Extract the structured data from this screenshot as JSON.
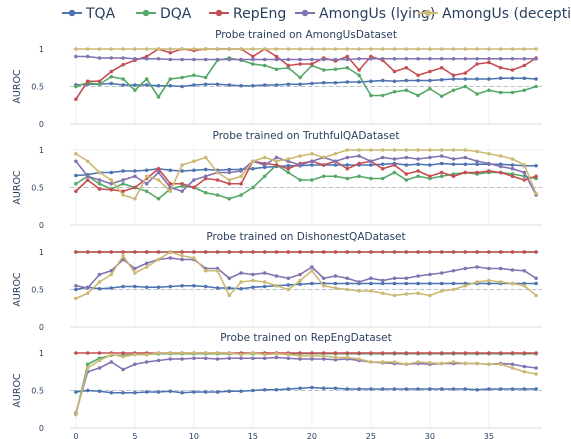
{
  "legend": [
    {
      "name": "TQA",
      "color": "#4c72b0"
    },
    {
      "name": "DQA",
      "color": "#55a868"
    },
    {
      "name": "RepEng",
      "color": "#c44e52"
    },
    {
      "name": "AmongUs (lying)",
      "color": "#8172b2"
    },
    {
      "name": "AmongUs (deception)",
      "color": "#ccb974"
    }
  ],
  "chart_data": [
    {
      "type": "line",
      "title": "Probe trained on AmongUsDataset",
      "ylabel": "AUROC",
      "xlabel": "",
      "x": [
        0,
        1,
        2,
        3,
        4,
        5,
        6,
        7,
        8,
        9,
        10,
        11,
        12,
        13,
        14,
        15,
        16,
        17,
        18,
        19,
        20,
        21,
        22,
        23,
        24,
        25,
        26,
        27,
        28,
        29,
        30,
        31,
        32,
        33,
        34,
        35,
        36,
        37,
        38,
        39
      ],
      "ylim": [
        0,
        1
      ],
      "yticks": [
        "0",
        "0.5",
        "1"
      ],
      "series": [
        {
          "name": "TQA",
          "values": [
            0.52,
            0.53,
            0.53,
            0.54,
            0.52,
            0.52,
            0.52,
            0.51,
            0.51,
            0.5,
            0.52,
            0.53,
            0.53,
            0.52,
            0.51,
            0.51,
            0.52,
            0.52,
            0.53,
            0.53,
            0.54,
            0.55,
            0.55,
            0.56,
            0.56,
            0.57,
            0.58,
            0.57,
            0.58,
            0.58,
            0.58,
            0.59,
            0.6,
            0.6,
            0.6,
            0.6,
            0.61,
            0.61,
            0.61,
            0.6
          ]
        },
        {
          "name": "DQA",
          "values": [
            0.5,
            0.55,
            0.53,
            0.63,
            0.6,
            0.45,
            0.6,
            0.36,
            0.6,
            0.62,
            0.65,
            0.62,
            0.85,
            0.88,
            0.85,
            0.8,
            0.78,
            0.73,
            0.75,
            0.62,
            0.78,
            0.72,
            0.73,
            0.75,
            0.65,
            0.38,
            0.38,
            0.43,
            0.45,
            0.38,
            0.47,
            0.37,
            0.45,
            0.5,
            0.4,
            0.45,
            0.42,
            0.42,
            0.45,
            0.5
          ]
        },
        {
          "name": "RepEng",
          "values": [
            0.33,
            0.57,
            0.57,
            0.7,
            0.79,
            0.85,
            0.9,
            1.0,
            0.95,
            1.0,
            0.98,
            1.0,
            1.0,
            1.0,
            1.0,
            0.9,
            1.0,
            0.9,
            0.78,
            0.8,
            0.8,
            0.88,
            0.84,
            0.9,
            0.72,
            0.9,
            0.85,
            0.7,
            0.75,
            0.65,
            0.7,
            0.75,
            0.65,
            0.68,
            0.8,
            0.82,
            0.75,
            0.72,
            0.78,
            0.88
          ]
        },
        {
          "name": "AmongUs (lying)",
          "values": [
            0.9,
            0.9,
            0.88,
            0.88,
            0.88,
            0.87,
            0.87,
            0.87,
            0.86,
            0.86,
            0.86,
            0.86,
            0.86,
            0.86,
            0.86,
            0.86,
            0.86,
            0.86,
            0.86,
            0.86,
            0.86,
            0.86,
            0.86,
            0.86,
            0.87,
            0.87,
            0.87,
            0.87,
            0.87,
            0.87,
            0.87,
            0.87,
            0.87,
            0.87,
            0.87,
            0.87,
            0.87,
            0.87,
            0.87,
            0.87
          ]
        },
        {
          "name": "AmongUs (deception)",
          "values": [
            1.0,
            1.0,
            1.0,
            1.0,
            1.0,
            1.0,
            1.0,
            1.0,
            1.0,
            1.0,
            1.0,
            1.0,
            1.0,
            1.0,
            1.0,
            1.0,
            1.0,
            1.0,
            1.0,
            1.0,
            1.0,
            1.0,
            1.0,
            1.0,
            1.0,
            1.0,
            1.0,
            1.0,
            1.0,
            1.0,
            1.0,
            1.0,
            1.0,
            1.0,
            1.0,
            1.0,
            1.0,
            1.0,
            1.0,
            1.0
          ]
        }
      ]
    },
    {
      "type": "line",
      "title": "Probe trained on TruthfulQADataset",
      "ylabel": "AUROC",
      "xlabel": "",
      "x": [
        0,
        1,
        2,
        3,
        4,
        5,
        6,
        7,
        8,
        9,
        10,
        11,
        12,
        13,
        14,
        15,
        16,
        17,
        18,
        19,
        20,
        21,
        22,
        23,
        24,
        25,
        26,
        27,
        28,
        29,
        30,
        31,
        32,
        33,
        34,
        35,
        36,
        37,
        38,
        39
      ],
      "ylim": [
        0,
        1
      ],
      "yticks": [
        "0",
        "0.5",
        "1"
      ],
      "series": [
        {
          "name": "TQA",
          "values": [
            0.66,
            0.67,
            0.7,
            0.7,
            0.72,
            0.72,
            0.73,
            0.75,
            0.73,
            0.72,
            0.73,
            0.74,
            0.73,
            0.74,
            0.74,
            0.75,
            0.77,
            0.78,
            0.79,
            0.79,
            0.8,
            0.8,
            0.8,
            0.8,
            0.8,
            0.8,
            0.81,
            0.82,
            0.8,
            0.81,
            0.8,
            0.82,
            0.81,
            0.81,
            0.81,
            0.81,
            0.81,
            0.8,
            0.79,
            0.79
          ]
        },
        {
          "name": "DQA",
          "values": [
            0.55,
            0.65,
            0.55,
            0.48,
            0.55,
            0.5,
            0.45,
            0.35,
            0.48,
            0.52,
            0.5,
            0.43,
            0.4,
            0.35,
            0.4,
            0.5,
            0.65,
            0.8,
            0.7,
            0.6,
            0.6,
            0.65,
            0.65,
            0.62,
            0.65,
            0.62,
            0.62,
            0.7,
            0.6,
            0.65,
            0.62,
            0.65,
            0.68,
            0.7,
            0.68,
            0.7,
            0.7,
            0.68,
            0.65,
            0.62
          ]
        },
        {
          "name": "RepEng",
          "values": [
            0.45,
            0.6,
            0.48,
            0.47,
            0.45,
            0.5,
            0.62,
            0.75,
            0.55,
            0.55,
            0.5,
            0.62,
            0.6,
            0.55,
            0.55,
            0.85,
            0.82,
            0.8,
            0.75,
            0.82,
            0.85,
            0.8,
            0.85,
            0.75,
            0.82,
            0.85,
            0.75,
            0.8,
            0.68,
            0.72,
            0.65,
            0.7,
            0.65,
            0.7,
            0.7,
            0.72,
            0.7,
            0.65,
            0.6,
            0.65
          ]
        },
        {
          "name": "AmongUs (lying)",
          "values": [
            0.85,
            0.65,
            0.6,
            0.55,
            0.6,
            0.65,
            0.55,
            0.7,
            0.5,
            0.45,
            0.6,
            0.65,
            0.7,
            0.7,
            0.72,
            0.85,
            0.8,
            0.9,
            0.85,
            0.8,
            0.85,
            0.9,
            0.85,
            0.9,
            0.92,
            0.85,
            0.9,
            0.88,
            0.9,
            0.88,
            0.9,
            0.92,
            0.88,
            0.9,
            0.85,
            0.82,
            0.78,
            0.75,
            0.7,
            0.4
          ]
        },
        {
          "name": "AmongUs (deception)",
          "values": [
            0.95,
            0.85,
            0.7,
            0.6,
            0.4,
            0.35,
            0.65,
            0.6,
            0.45,
            0.8,
            0.85,
            0.9,
            0.7,
            0.6,
            0.65,
            0.85,
            0.9,
            0.85,
            0.88,
            0.92,
            0.95,
            0.9,
            0.95,
            1.0,
            1.0,
            1.0,
            1.0,
            1.0,
            1.0,
            1.0,
            1.0,
            1.0,
            1.0,
            1.0,
            0.98,
            0.95,
            0.92,
            0.88,
            0.8,
            0.42
          ]
        }
      ]
    },
    {
      "type": "line",
      "title": "Probe trained on DishonestQADataset",
      "ylabel": "AUROC",
      "xlabel": "",
      "x": [
        0,
        1,
        2,
        3,
        4,
        5,
        6,
        7,
        8,
        9,
        10,
        11,
        12,
        13,
        14,
        15,
        16,
        17,
        18,
        19,
        20,
        21,
        22,
        23,
        24,
        25,
        26,
        27,
        28,
        29,
        30,
        31,
        32,
        33,
        34,
        35,
        36,
        37,
        38,
        39
      ],
      "ylim": [
        0,
        1
      ],
      "yticks": [
        "0",
        "0.5",
        "1"
      ],
      "series": [
        {
          "name": "TQA",
          "values": [
            0.5,
            0.53,
            0.51,
            0.52,
            0.54,
            0.54,
            0.53,
            0.53,
            0.54,
            0.55,
            0.55,
            0.54,
            0.52,
            0.52,
            0.51,
            0.53,
            0.54,
            0.55,
            0.56,
            0.57,
            0.58,
            0.58,
            0.58,
            0.58,
            0.58,
            0.58,
            0.58,
            0.58,
            0.58,
            0.58,
            0.58,
            0.58,
            0.58,
            0.58,
            0.58,
            0.58,
            0.58,
            0.58,
            0.58,
            0.58
          ]
        },
        {
          "name": "DQA",
          "values": [
            1.0,
            1.0,
            1.0,
            1.0,
            1.0,
            1.0,
            1.0,
            1.0,
            1.0,
            1.0,
            1.0,
            1.0,
            1.0,
            1.0,
            1.0,
            1.0,
            1.0,
            1.0,
            1.0,
            1.0,
            1.0,
            1.0,
            1.0,
            1.0,
            1.0,
            1.0,
            1.0,
            1.0,
            1.0,
            1.0,
            1.0,
            1.0,
            1.0,
            1.0,
            1.0,
            1.0,
            1.0,
            1.0,
            1.0,
            1.0
          ]
        },
        {
          "name": "RepEng",
          "values": [
            1.0,
            1.0,
            1.0,
            1.0,
            1.0,
            1.0,
            1.0,
            1.0,
            1.0,
            1.0,
            1.0,
            1.0,
            1.0,
            1.0,
            1.0,
            1.0,
            1.0,
            1.0,
            1.0,
            1.0,
            1.0,
            1.0,
            1.0,
            1.0,
            1.0,
            1.0,
            1.0,
            1.0,
            1.0,
            1.0,
            1.0,
            1.0,
            1.0,
            1.0,
            1.0,
            1.0,
            1.0,
            1.0,
            1.0,
            1.0
          ]
        },
        {
          "name": "AmongUs (lying)",
          "values": [
            0.55,
            0.52,
            0.7,
            0.75,
            0.9,
            0.78,
            0.85,
            0.9,
            0.92,
            0.9,
            0.9,
            0.78,
            0.78,
            0.65,
            0.72,
            0.7,
            0.72,
            0.68,
            0.65,
            0.7,
            0.8,
            0.65,
            0.68,
            0.65,
            0.6,
            0.65,
            0.62,
            0.65,
            0.65,
            0.68,
            0.7,
            0.72,
            0.75,
            0.78,
            0.8,
            0.78,
            0.78,
            0.76,
            0.75,
            0.65
          ]
        },
        {
          "name": "AmongUs (deception)",
          "values": [
            0.38,
            0.45,
            0.6,
            0.7,
            0.95,
            0.72,
            0.8,
            0.9,
            1.0,
            0.95,
            0.92,
            0.75,
            0.75,
            0.42,
            0.6,
            0.62,
            0.6,
            0.55,
            0.5,
            0.62,
            0.75,
            0.55,
            0.52,
            0.5,
            0.48,
            0.48,
            0.45,
            0.42,
            0.44,
            0.45,
            0.42,
            0.48,
            0.5,
            0.55,
            0.6,
            0.62,
            0.6,
            0.58,
            0.55,
            0.42
          ]
        }
      ]
    },
    {
      "type": "line",
      "title": "Probe trained on RepEngDataset",
      "ylabel": "AUROC",
      "xlabel": "",
      "x": [
        0,
        1,
        2,
        3,
        4,
        5,
        6,
        7,
        8,
        9,
        10,
        11,
        12,
        13,
        14,
        15,
        16,
        17,
        18,
        19,
        20,
        21,
        22,
        23,
        24,
        25,
        26,
        27,
        28,
        29,
        30,
        31,
        32,
        33,
        34,
        35,
        36,
        37,
        38,
        39
      ],
      "ylim": [
        0,
        1
      ],
      "xticks": [
        "0",
        "5",
        "10",
        "15",
        "20",
        "25",
        "30",
        "35"
      ],
      "yticks": [
        "0",
        "0.5",
        "1"
      ],
      "series": [
        {
          "name": "TQA",
          "values": [
            0.48,
            0.5,
            0.49,
            0.47,
            0.47,
            0.47,
            0.48,
            0.48,
            0.49,
            0.47,
            0.48,
            0.48,
            0.48,
            0.49,
            0.49,
            0.5,
            0.51,
            0.51,
            0.52,
            0.53,
            0.54,
            0.53,
            0.53,
            0.52,
            0.52,
            0.52,
            0.52,
            0.52,
            0.52,
            0.52,
            0.52,
            0.52,
            0.52,
            0.52,
            0.51,
            0.52,
            0.52,
            0.52,
            0.52,
            0.52
          ]
        },
        {
          "name": "DQA",
          "values": [
            0.18,
            0.85,
            0.93,
            0.97,
            0.97,
            0.98,
            0.98,
            0.99,
            0.99,
            0.99,
            0.99,
            0.99,
            0.99,
            0.99,
            0.99,
            0.99,
            0.99,
            0.99,
            0.99,
            0.99,
            0.99,
            0.99,
            0.99,
            0.99,
            0.99,
            0.99,
            0.99,
            0.99,
            0.99,
            0.99,
            0.99,
            0.99,
            0.99,
            0.99,
            0.99,
            0.99,
            0.99,
            0.99,
            0.99,
            0.99
          ]
        },
        {
          "name": "RepEng",
          "values": [
            1.0,
            1.0,
            1.0,
            1.0,
            1.0,
            1.0,
            1.0,
            1.0,
            1.0,
            1.0,
            1.0,
            1.0,
            1.0,
            1.0,
            1.0,
            1.0,
            1.0,
            1.0,
            1.0,
            1.0,
            1.0,
            1.0,
            1.0,
            1.0,
            1.0,
            1.0,
            1.0,
            1.0,
            1.0,
            1.0,
            1.0,
            1.0,
            1.0,
            1.0,
            1.0,
            1.0,
            1.0,
            1.0,
            1.0,
            1.0
          ]
        },
        {
          "name": "AmongUs (lying)",
          "values": [
            0.2,
            0.75,
            0.8,
            0.88,
            0.78,
            0.85,
            0.88,
            0.9,
            0.92,
            0.92,
            0.93,
            0.93,
            0.92,
            0.93,
            0.93,
            0.93,
            0.93,
            0.94,
            0.93,
            0.92,
            0.92,
            0.92,
            0.91,
            0.92,
            0.9,
            0.88,
            0.87,
            0.86,
            0.85,
            0.86,
            0.85,
            0.86,
            0.86,
            0.86,
            0.86,
            0.85,
            0.86,
            0.85,
            0.82,
            0.8
          ]
        },
        {
          "name": "AmongUs (deception)",
          "values": [
            0.18,
            0.8,
            0.9,
            0.98,
            0.95,
            0.98,
            0.98,
            1.0,
            1.0,
            1.0,
            1.0,
            1.0,
            1.0,
            1.0,
            0.98,
            1.0,
            0.98,
            0.99,
            0.98,
            0.96,
            0.96,
            0.96,
            0.94,
            0.94,
            0.92,
            0.88,
            0.88,
            0.88,
            0.85,
            0.88,
            0.87,
            0.86,
            0.88,
            0.86,
            0.86,
            0.85,
            0.85,
            0.8,
            0.75,
            0.72
          ]
        }
      ]
    }
  ]
}
